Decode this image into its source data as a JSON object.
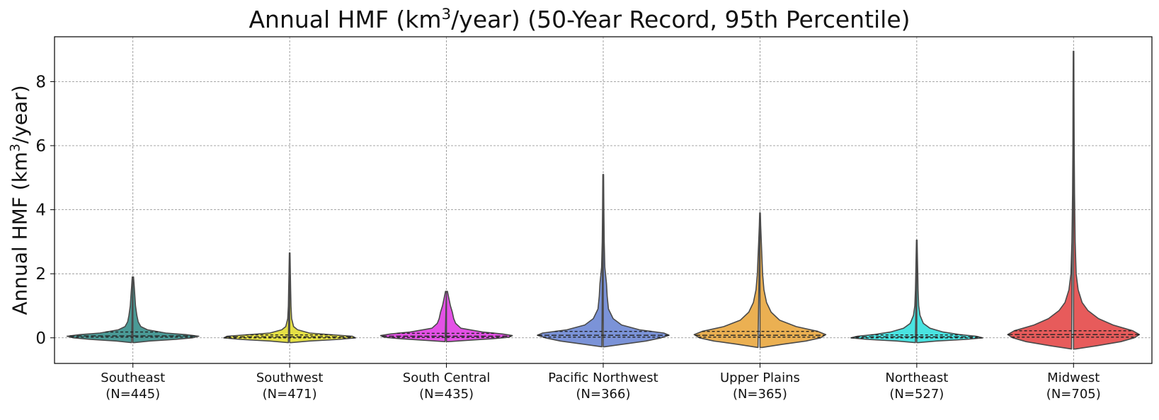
{
  "chart_data": {
    "type": "violin",
    "title": "Annual HMF (km³/year) (50-Year Record, 95th Percentile)",
    "title_parts": {
      "before": "Annual HMF (km",
      "sup": "3",
      "after": "/year) (50-Year Record, 95th Percentile)"
    },
    "ylabel": "Annual HMF (km³/year)",
    "ylabel_parts": {
      "before": "Annual HMF (km",
      "sup": "3",
      "after": "/year)"
    },
    "xlabel": "",
    "ylim": [
      -0.8,
      9.4
    ],
    "yticks": [
      0,
      2,
      4,
      6,
      8
    ],
    "grid": true,
    "inner": "quartile",
    "categories": [
      {
        "name": "Southeast",
        "n_label": "(N=445)",
        "color": "#4a9a96",
        "min": -0.15,
        "max": 1.9,
        "q1": 0.02,
        "median": 0.06,
        "q3": 0.18,
        "profile": [
          [
            -0.15,
            0.02
          ],
          [
            -0.1,
            0.25
          ],
          [
            -0.05,
            0.65
          ],
          [
            0.0,
            0.9
          ],
          [
            0.05,
            1.0
          ],
          [
            0.1,
            0.8
          ],
          [
            0.15,
            0.5
          ],
          [
            0.25,
            0.22
          ],
          [
            0.35,
            0.12
          ],
          [
            0.5,
            0.08
          ],
          [
            0.7,
            0.06
          ],
          [
            1.0,
            0.04
          ],
          [
            1.3,
            0.03
          ],
          [
            1.6,
            0.02
          ],
          [
            1.9,
            0.01
          ]
        ]
      },
      {
        "name": "Southwest",
        "n_label": "(N=471)",
        "color": "#e5e045",
        "min": -0.15,
        "max": 2.65,
        "q1": 0.0,
        "median": 0.03,
        "q3": 0.09,
        "profile": [
          [
            -0.15,
            0.02
          ],
          [
            -0.1,
            0.3
          ],
          [
            -0.05,
            0.75
          ],
          [
            0.0,
            1.0
          ],
          [
            0.05,
            0.95
          ],
          [
            0.1,
            0.6
          ],
          [
            0.15,
            0.3
          ],
          [
            0.25,
            0.12
          ],
          [
            0.35,
            0.06
          ],
          [
            0.6,
            0.03
          ],
          [
            1.0,
            0.02
          ],
          [
            1.5,
            0.015
          ],
          [
            2.0,
            0.01
          ],
          [
            2.65,
            0.005
          ]
        ]
      },
      {
        "name": "South Central",
        "n_label": "(N=435)",
        "color": "#e451e6",
        "min": -0.12,
        "max": 1.45,
        "q1": 0.01,
        "median": 0.05,
        "q3": 0.14,
        "profile": [
          [
            -0.12,
            0.02
          ],
          [
            -0.08,
            0.3
          ],
          [
            -0.03,
            0.7
          ],
          [
            0.02,
            0.95
          ],
          [
            0.07,
            1.0
          ],
          [
            0.12,
            0.85
          ],
          [
            0.18,
            0.55
          ],
          [
            0.3,
            0.22
          ],
          [
            0.45,
            0.14
          ],
          [
            0.6,
            0.11
          ],
          [
            0.8,
            0.09
          ],
          [
            1.0,
            0.06
          ],
          [
            1.2,
            0.04
          ],
          [
            1.45,
            0.015
          ]
        ]
      },
      {
        "name": "Pacific Northwest",
        "n_label": "(N=366)",
        "color": "#7b93d8",
        "min": -0.28,
        "max": 5.1,
        "q1": 0.02,
        "median": 0.08,
        "q3": 0.2,
        "profile": [
          [
            -0.28,
            0.02
          ],
          [
            -0.2,
            0.3
          ],
          [
            -0.1,
            0.65
          ],
          [
            0.0,
            0.88
          ],
          [
            0.08,
            1.0
          ],
          [
            0.15,
            0.92
          ],
          [
            0.25,
            0.55
          ],
          [
            0.4,
            0.28
          ],
          [
            0.6,
            0.15
          ],
          [
            0.9,
            0.08
          ],
          [
            1.3,
            0.06
          ],
          [
            1.7,
            0.05
          ],
          [
            2.2,
            0.025
          ],
          [
            3.0,
            0.015
          ],
          [
            4.0,
            0.01
          ],
          [
            5.1,
            0.005
          ]
        ]
      },
      {
        "name": "Upper Plains",
        "n_label": "(N=365)",
        "color": "#ebb052",
        "min": -0.3,
        "max": 3.9,
        "q1": 0.02,
        "median": 0.08,
        "q3": 0.2,
        "profile": [
          [
            -0.3,
            0.03
          ],
          [
            -0.2,
            0.35
          ],
          [
            -0.1,
            0.7
          ],
          [
            0.0,
            0.92
          ],
          [
            0.1,
            1.0
          ],
          [
            0.2,
            0.88
          ],
          [
            0.35,
            0.55
          ],
          [
            0.55,
            0.3
          ],
          [
            0.8,
            0.17
          ],
          [
            1.1,
            0.1
          ],
          [
            1.5,
            0.06
          ],
          [
            2.0,
            0.04
          ],
          [
            2.5,
            0.03
          ],
          [
            3.0,
            0.02
          ],
          [
            3.5,
            0.01
          ],
          [
            3.9,
            0.005
          ]
        ]
      },
      {
        "name": "Northeast",
        "n_label": "(N=527)",
        "color": "#49e3e1",
        "min": -0.15,
        "max": 3.05,
        "q1": 0.0,
        "median": 0.03,
        "q3": 0.09,
        "profile": [
          [
            -0.15,
            0.02
          ],
          [
            -0.1,
            0.3
          ],
          [
            -0.05,
            0.75
          ],
          [
            0.0,
            1.0
          ],
          [
            0.05,
            0.9
          ],
          [
            0.1,
            0.65
          ],
          [
            0.18,
            0.4
          ],
          [
            0.3,
            0.2
          ],
          [
            0.45,
            0.1
          ],
          [
            0.7,
            0.05
          ],
          [
            1.0,
            0.03
          ],
          [
            1.5,
            0.02
          ],
          [
            2.0,
            0.015
          ],
          [
            2.5,
            0.01
          ],
          [
            3.05,
            0.005
          ]
        ]
      },
      {
        "name": "Midwest",
        "n_label": "(N=705)",
        "color": "#e75b5b",
        "min": -0.35,
        "max": 8.95,
        "q1": 0.02,
        "median": 0.1,
        "q3": 0.22,
        "profile": [
          [
            -0.35,
            0.03
          ],
          [
            -0.25,
            0.35
          ],
          [
            -0.12,
            0.72
          ],
          [
            0.0,
            0.92
          ],
          [
            0.1,
            1.0
          ],
          [
            0.22,
            0.9
          ],
          [
            0.4,
            0.6
          ],
          [
            0.6,
            0.38
          ],
          [
            0.85,
            0.22
          ],
          [
            1.1,
            0.13
          ],
          [
            1.5,
            0.07
          ],
          [
            2.0,
            0.04
          ],
          [
            3.0,
            0.025
          ],
          [
            4.5,
            0.015
          ],
          [
            6.0,
            0.01
          ],
          [
            7.5,
            0.007
          ],
          [
            8.95,
            0.004
          ]
        ]
      }
    ]
  }
}
